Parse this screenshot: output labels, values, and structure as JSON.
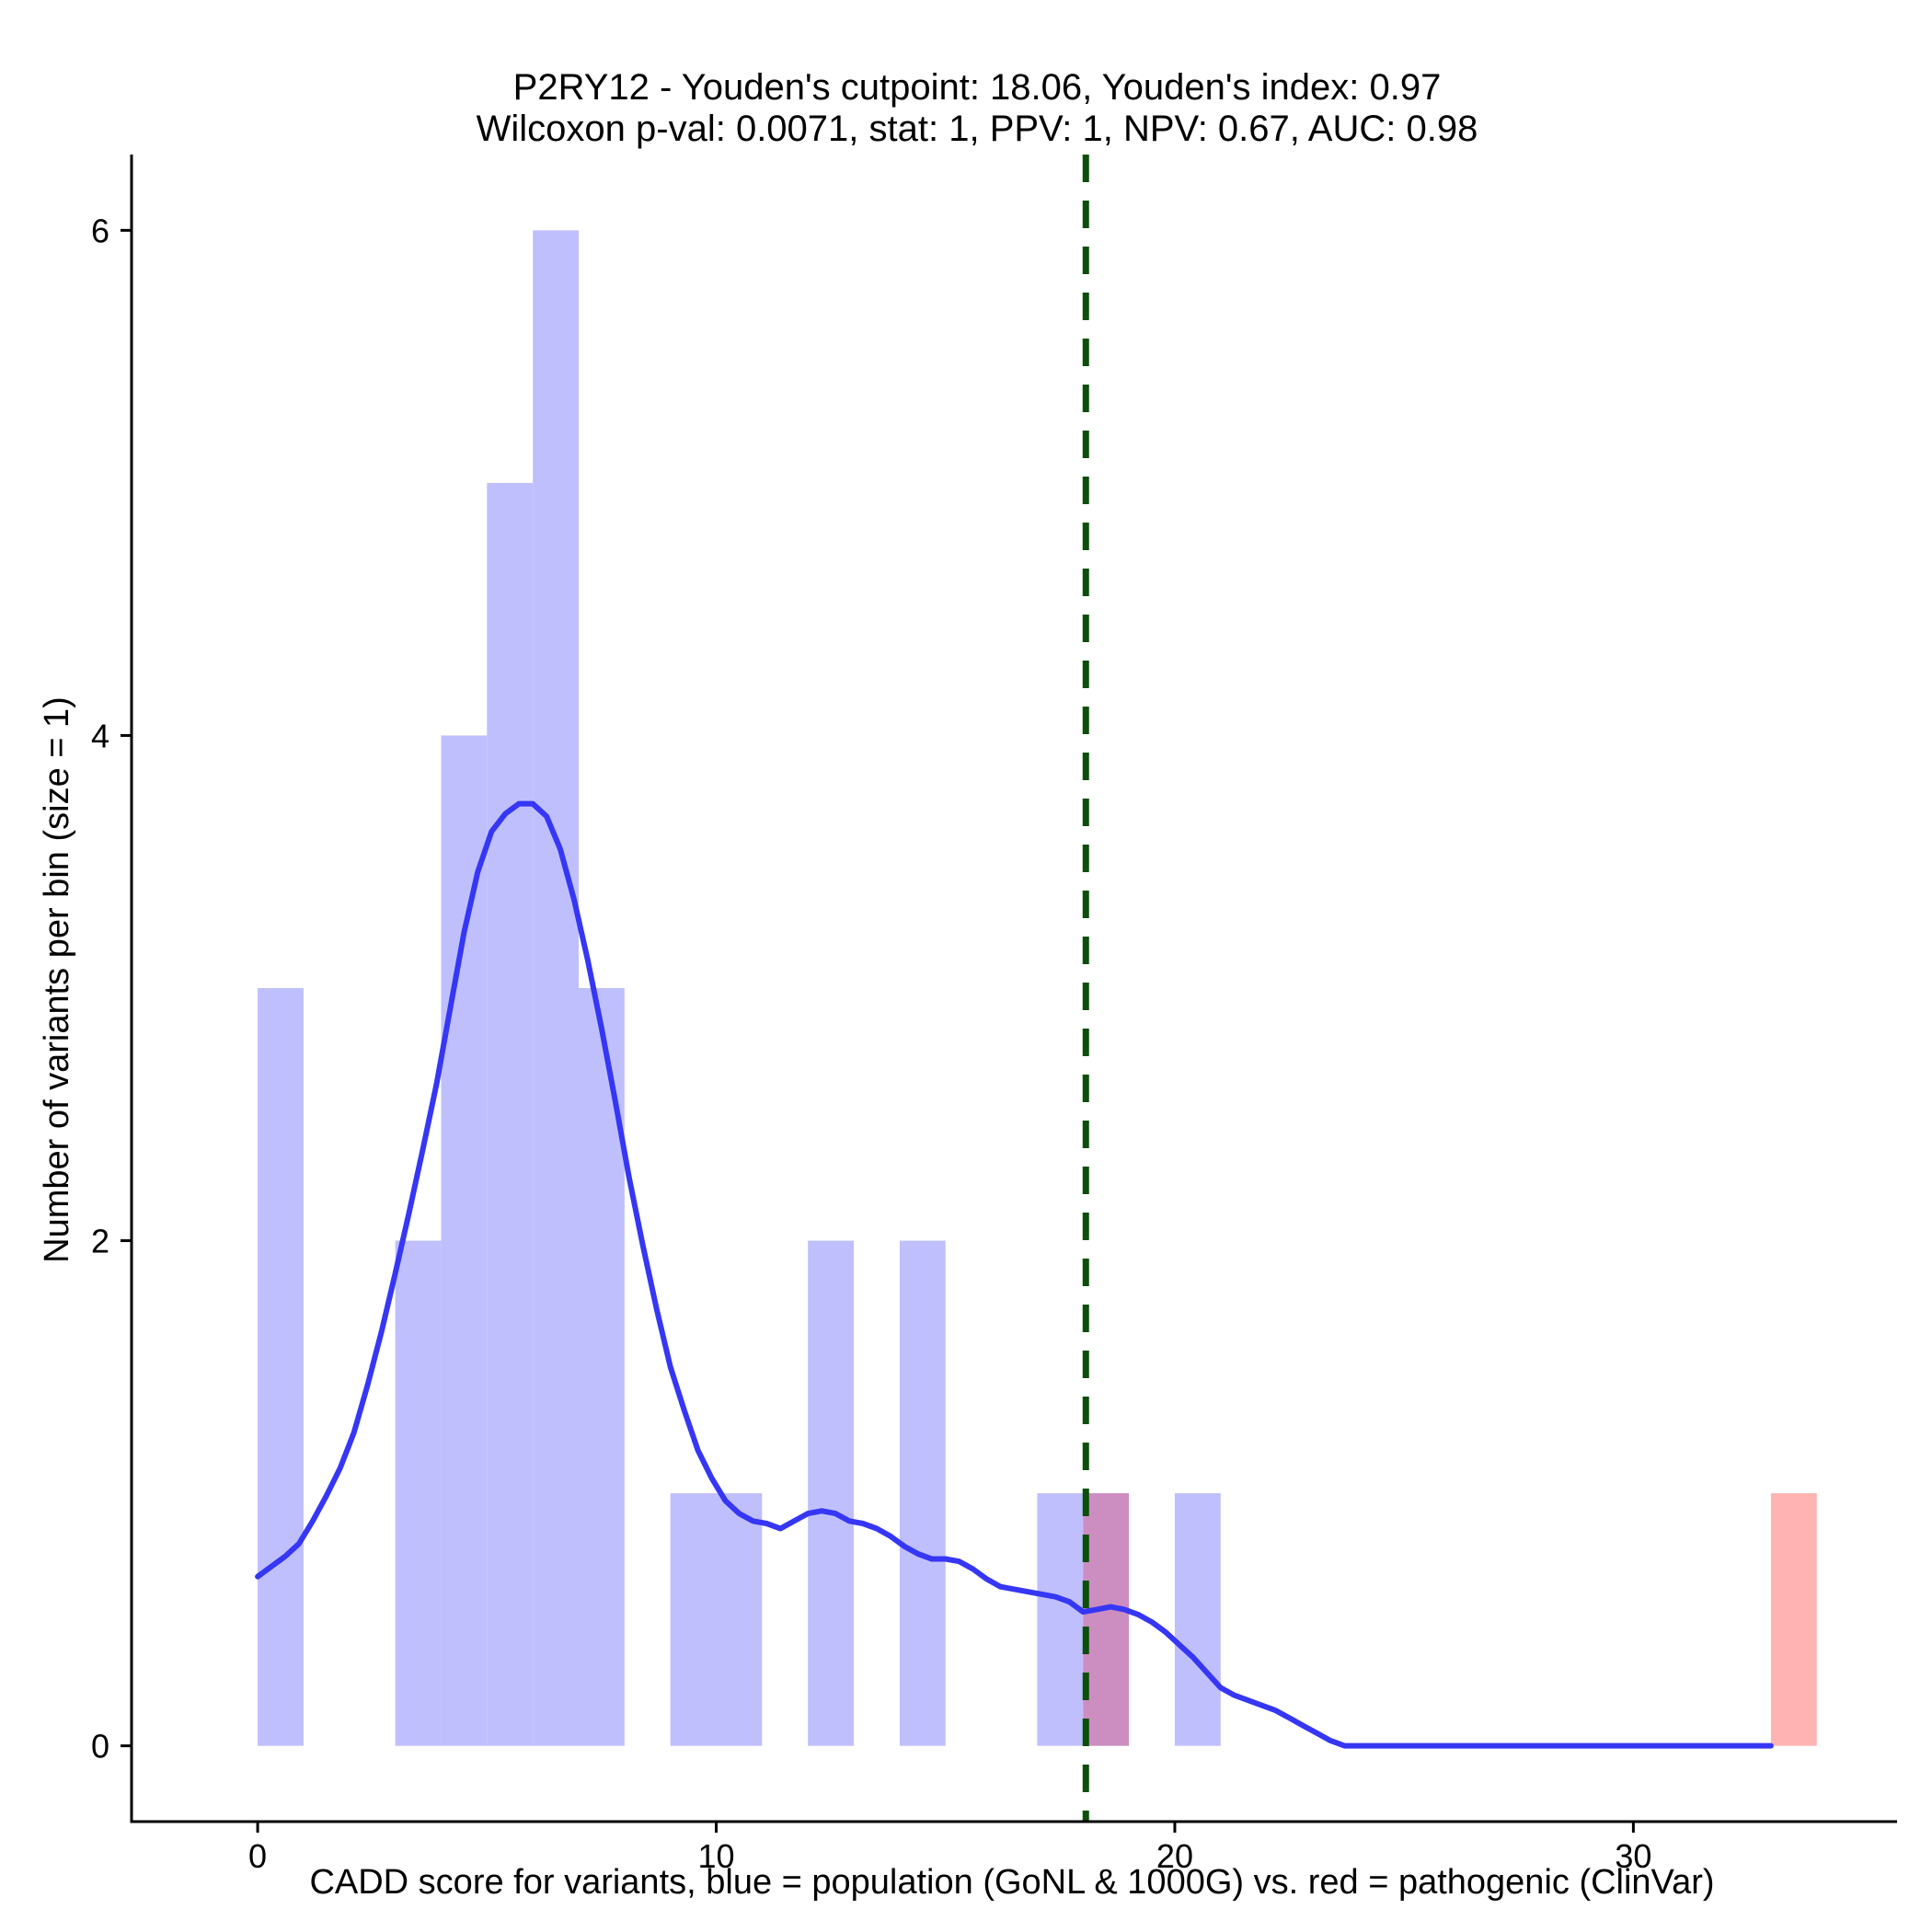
{
  "chart_data": {
    "type": "bar",
    "title": [
      "P2RY12 - Youden's cutpoint: 18.06, Youden's index: 0.97",
      "Wilcoxon p-val: 0.0071, stat: 1, PPV: 1, NPV: 0.67, AUC: 0.98"
    ],
    "xlabel": "CADD score for variants, blue = population (GoNL & 1000G) vs. red = pathogenic (ClinVar)",
    "ylabel": "Number of variants per bin (size = 1)",
    "xlim": [
      -2.75,
      35.75
    ],
    "ylim": [
      -0.3,
      6.3
    ],
    "x_ticks": [
      0,
      10,
      20,
      30
    ],
    "y_ticks": [
      0,
      2,
      4,
      6
    ],
    "bin_width": 1,
    "series": [
      {
        "name": "population (GoNL & 1000G)",
        "color": "#bfbffd",
        "bins": [
          [
            0,
            3
          ],
          [
            3,
            2
          ],
          [
            4,
            4
          ],
          [
            5,
            5
          ],
          [
            6,
            6
          ],
          [
            7,
            3
          ],
          [
            9,
            1
          ],
          [
            10,
            1
          ],
          [
            12,
            2
          ],
          [
            14,
            2
          ],
          [
            17,
            1
          ],
          [
            18,
            1
          ],
          [
            20,
            1
          ]
        ]
      },
      {
        "name": "pathogenic (ClinVar)",
        "color": "#ffb3b3",
        "bins": [
          [
            18,
            1
          ],
          [
            33,
            1
          ]
        ]
      }
    ],
    "overlap_color": "#cc8dc0",
    "density": {
      "name": "population density",
      "color": "#3636f5",
      "x": [
        0,
        0.3,
        0.6,
        0.9,
        1.2,
        1.5,
        1.8,
        2.1,
        2.4,
        2.7,
        3.0,
        3.3,
        3.6,
        3.9,
        4.2,
        4.5,
        4.8,
        5.1,
        5.4,
        5.7,
        6.0,
        6.3,
        6.6,
        6.9,
        7.2,
        7.5,
        7.8,
        8.1,
        8.4,
        8.7,
        9.0,
        9.3,
        9.6,
        9.9,
        10.2,
        10.5,
        10.8,
        11.1,
        11.4,
        11.7,
        12.0,
        12.3,
        12.6,
        12.9,
        13.2,
        13.5,
        13.8,
        14.1,
        14.4,
        14.7,
        15.0,
        15.3,
        15.6,
        15.9,
        16.2,
        16.5,
        16.8,
        17.1,
        17.4,
        17.7,
        18.0,
        18.3,
        18.6,
        18.9,
        19.2,
        19.5,
        19.8,
        20.1,
        20.4,
        20.7,
        21.0,
        21.3,
        21.6,
        21.9,
        22.2,
        22.5,
        22.8,
        23.1,
        23.4,
        23.7,
        24.0,
        25.0,
        26.0,
        27.0,
        28.0,
        29.0,
        30.0,
        31.0,
        32.0,
        33.0
      ],
      "y": [
        0.67,
        0.71,
        0.75,
        0.8,
        0.89,
        0.99,
        1.1,
        1.24,
        1.43,
        1.64,
        1.87,
        2.11,
        2.36,
        2.62,
        2.92,
        3.22,
        3.46,
        3.62,
        3.69,
        3.73,
        3.73,
        3.68,
        3.55,
        3.35,
        3.11,
        2.84,
        2.55,
        2.25,
        1.98,
        1.73,
        1.5,
        1.33,
        1.17,
        1.06,
        0.97,
        0.92,
        0.89,
        0.88,
        0.86,
        0.89,
        0.92,
        0.93,
        0.92,
        0.89,
        0.88,
        0.86,
        0.83,
        0.79,
        0.76,
        0.74,
        0.74,
        0.73,
        0.7,
        0.66,
        0.63,
        0.62,
        0.61,
        0.6,
        0.59,
        0.57,
        0.53,
        0.54,
        0.55,
        0.54,
        0.52,
        0.49,
        0.45,
        0.4,
        0.35,
        0.29,
        0.23,
        0.2,
        0.18,
        0.16,
        0.14,
        0.11,
        0.08,
        0.05,
        0.02,
        0.0,
        0.0,
        0.0,
        0.0,
        0.0,
        0.0,
        0.0,
        0.0,
        0.0,
        0.0,
        0.0
      ]
    },
    "cutpoint": {
      "label": "Youden's cutpoint",
      "x": 18.06,
      "color": "#0b4f0b"
    }
  }
}
